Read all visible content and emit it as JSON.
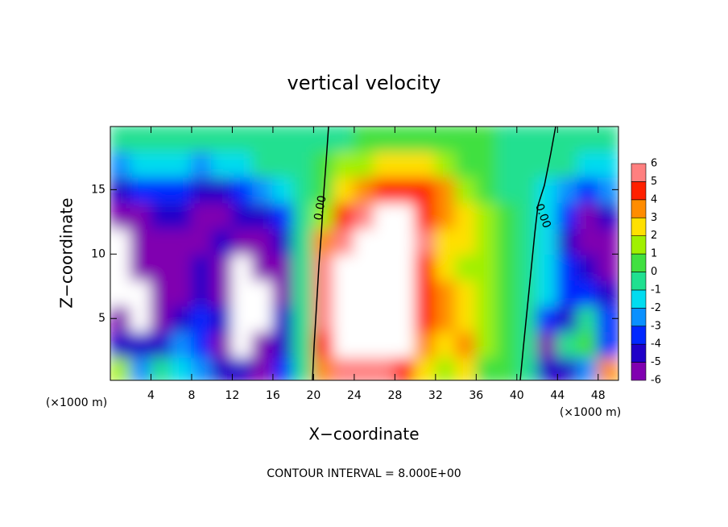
{
  "chart_data": {
    "type": "contour",
    "title": "vertical velocity",
    "x_label": "X−coordinate",
    "y_label": "Z−coordinate",
    "x_unit_label": "(×1000 m)",
    "footer": "CONTOUR INTERVAL = 8.000E+00",
    "contour_label": "0.00",
    "xlim": [
      0,
      50
    ],
    "ylim": [
      0.2,
      19.9
    ],
    "xticks": [
      4,
      8,
      12,
      16,
      20,
      24,
      28,
      32,
      36,
      40,
      44,
      48
    ],
    "yticks": [
      5,
      10,
      15
    ],
    "x": [
      1,
      3,
      5,
      7,
      9,
      11,
      13,
      15,
      17,
      19,
      21,
      23,
      25,
      27,
      29,
      31,
      33,
      35,
      37,
      39,
      41,
      43,
      45,
      47,
      49
    ],
    "y": [
      1,
      3,
      5,
      7,
      9,
      11,
      13,
      15,
      17,
      19
    ],
    "z": [
      [
        2,
        -2,
        0,
        -1,
        -2,
        -4,
        -4,
        -5,
        -3,
        0,
        4,
        6,
        6,
        6,
        5,
        3,
        2,
        3,
        1,
        0.5,
        0,
        -4,
        -4,
        -2,
        4
      ],
      [
        -4,
        -4,
        -4,
        -2,
        -3,
        -5,
        -8,
        -6,
        -4,
        0,
        5,
        7,
        8,
        8,
        8,
        4,
        3,
        4,
        2,
        1,
        0,
        -5,
        0,
        1,
        -3
      ],
      [
        -5,
        -8,
        -6,
        -4,
        -3,
        -4,
        -8,
        -8,
        -4,
        0,
        6,
        8,
        8,
        8,
        8,
        5,
        4,
        3,
        2,
        1,
        0,
        -3,
        -4,
        0,
        -3
      ],
      [
        -8,
        -8,
        -6,
        -5,
        -4,
        -5,
        -8,
        -8,
        -5,
        0,
        6,
        8,
        8,
        8,
        8,
        5,
        4,
        3,
        2,
        0.5,
        0,
        -1,
        -3,
        -3,
        -4
      ],
      [
        -8,
        -6,
        -5,
        -5,
        -4,
        -5,
        -8,
        -6,
        -5,
        0,
        6,
        8,
        8,
        8,
        8,
        5,
        3,
        2,
        2,
        1,
        0,
        -1,
        -3,
        -4,
        -5
      ],
      [
        -8,
        -5,
        -5,
        -5,
        -5,
        -4.5,
        -6,
        -6,
        -4,
        0,
        4,
        6,
        8,
        8,
        8,
        6,
        3,
        3,
        2,
        1,
        0,
        -1,
        -4,
        -5,
        -6
      ],
      [
        -5,
        -5,
        -4,
        -4,
        -5,
        -5,
        -4,
        -4,
        -3,
        0,
        2,
        5,
        6,
        7,
        7,
        5,
        4,
        3,
        2,
        0.5,
        0,
        -1,
        -3,
        -5,
        -4
      ],
      [
        -4,
        -3.5,
        -3,
        -3,
        -4,
        -4.5,
        -3,
        -2,
        -1,
        0,
        1,
        3,
        4,
        5,
        5,
        4.5,
        3.5,
        2,
        1,
        0,
        0,
        -1,
        -2,
        -3,
        -2
      ],
      [
        -2,
        -1.5,
        -1,
        -1.5,
        -2,
        -1.5,
        -1,
        -0.5,
        0,
        0,
        0.5,
        1.5,
        2,
        2.5,
        2.5,
        2.5,
        2,
        1,
        0.5,
        0,
        0,
        0,
        -0.5,
        -1,
        -1
      ],
      [
        0,
        0,
        0,
        0,
        0,
        0,
        0,
        0,
        0,
        0,
        0,
        0,
        0.5,
        1,
        1,
        1,
        1,
        1,
        0.5,
        0,
        0,
        0,
        0,
        0,
        0
      ]
    ],
    "levels": [
      -6,
      -5,
      -4,
      -3,
      -2,
      -1,
      0,
      1,
      2,
      3,
      4,
      5,
      6
    ],
    "colors": [
      "#8000b0",
      "#2000c8",
      "#0028ff",
      "#0a90ff",
      "#00dcf0",
      "#20e090",
      "#40e040",
      "#a0f000",
      "#ffe000",
      "#ff8c00",
      "#ff2000",
      "#ff8080"
    ]
  }
}
